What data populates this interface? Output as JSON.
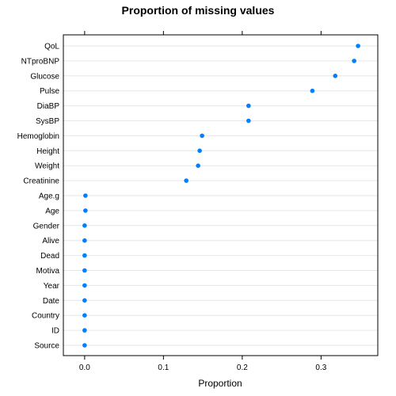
{
  "chart_data": {
    "type": "dotplot",
    "title": "Proportion of missing values",
    "xlabel": "Proportion",
    "ylabel": "",
    "xlim": [
      -0.027,
      0.372
    ],
    "xticks": [
      0.0,
      0.1,
      0.2,
      0.3
    ],
    "xtick_labels": [
      "0.0",
      "0.1",
      "0.2",
      "0.3"
    ],
    "grid": true,
    "point_color": "#0080ff",
    "grid_color": "#e6e6e6",
    "categories": [
      "QoL",
      "NTproBNP",
      "Glucose",
      "Pulse",
      "DiaBP",
      "SysBP",
      "Hemoglobin",
      "Height",
      "Weight",
      "Creatinine",
      "Age.g",
      "Age",
      "Gender",
      "Alive",
      "Dead",
      "Motiva",
      "Year",
      "Date",
      "Country",
      "ID",
      "Source"
    ],
    "values": [
      0.347,
      0.342,
      0.318,
      0.289,
      0.208,
      0.208,
      0.149,
      0.146,
      0.144,
      0.129,
      0.001,
      0.001,
      0.0,
      0.0,
      0.0,
      0.0,
      0.0,
      0.0,
      0.0,
      0.0,
      0.0
    ]
  }
}
